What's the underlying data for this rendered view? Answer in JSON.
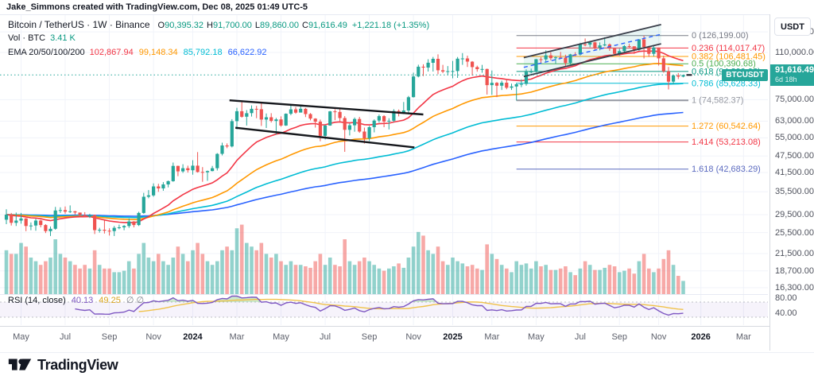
{
  "attribution": "Jake_Simmons created with TradingView.com, Dec 08, 2025 01:49 UTC-5",
  "legend": {
    "title": "Bitcoin / TetherUS · 1W · Binance",
    "ohlc": [
      {
        "k": "O",
        "v": "90,395.32"
      },
      {
        "k": "H",
        "v": "91,700.00"
      },
      {
        "k": "L",
        "v": "89,860.00"
      },
      {
        "k": "C",
        "v": "91,616.49"
      }
    ],
    "change": "+1,221.18 (+1.35%)",
    "value_color": "#089981",
    "vol_label": "Vol · BTC",
    "vol_value": "3.41 K",
    "ema_label": "EMA 20/50/100/200",
    "ema_values": [
      {
        "v": "102,867.94",
        "color": "#f23645"
      },
      {
        "v": "99,148.34",
        "color": "#ff9800"
      },
      {
        "v": "85,792.18",
        "color": "#00bcd4"
      },
      {
        "v": "66,622.92",
        "color": "#2962ff"
      }
    ]
  },
  "price_axis": {
    "currency": "USDT",
    "badge": {
      "symbol": "BTCUSDT",
      "price": "91,616.49",
      "countdown": "6d 18h",
      "color": "#26a69a"
    }
  },
  "rsi_legend": {
    "label": "RSI (14, close)",
    "value": "40.13",
    "ma_value": "49.25",
    "empty": "∅  ∅",
    "value_color": "#7e57c2",
    "ma_color": "#d9a521"
  },
  "footer": {
    "brand": "TradingView"
  },
  "chart_data": {
    "type": "candlestick",
    "symbol": "BTCUSDT",
    "exchange": "Binance",
    "interval": "1W",
    "price_scale": "logarithmic",
    "title": "Bitcoin / TetherUS weekly chart with EMA 20/50/100/200, volume, RSI and Fibonacci retracement",
    "unit": "USDT, candle arrays in thousands",
    "up_color": "#26a69a",
    "down_color": "#ef5350",
    "vol_up_color": "rgba(38,166,154,0.5)",
    "vol_down_color": "rgba(239,83,80,0.5)",
    "first_open_k": 28.3,
    "candles_hlc_k": [
      [
        30.8,
        27.3,
        29.5
      ],
      [
        29.9,
        27.0,
        27.6
      ],
      [
        30.0,
        26.9,
        28.1
      ],
      [
        29.9,
        27.4,
        28.6
      ],
      [
        28.7,
        25.8,
        26.9
      ],
      [
        27.7,
        26.0,
        27.0
      ],
      [
        28.5,
        25.9,
        28.1
      ],
      [
        28.3,
        26.6,
        27.1
      ],
      [
        27.3,
        25.4,
        25.8
      ],
      [
        26.8,
        24.8,
        26.3
      ],
      [
        31.4,
        26.1,
        30.5
      ],
      [
        31.3,
        29.9,
        30.6
      ],
      [
        31.5,
        29.7,
        30.2
      ],
      [
        31.8,
        29.9,
        30.3
      ],
      [
        30.4,
        29.5,
        30.0
      ],
      [
        29.9,
        29.0,
        29.4
      ],
      [
        30.1,
        28.9,
        29.0
      ],
      [
        29.7,
        28.7,
        29.4
      ],
      [
        29.5,
        25.2,
        26.0
      ],
      [
        26.5,
        25.5,
        26.1
      ],
      [
        28.1,
        25.3,
        25.9
      ],
      [
        26.4,
        24.9,
        25.8
      ],
      [
        26.9,
        24.8,
        26.5
      ],
      [
        27.2,
        26.2,
        26.6
      ],
      [
        27.1,
        26.0,
        26.9
      ],
      [
        28.6,
        26.5,
        27.9
      ],
      [
        28.0,
        26.6,
        27.1
      ],
      [
        30.2,
        26.9,
        29.9
      ],
      [
        35.2,
        29.7,
        34.1
      ],
      [
        36.0,
        33.7,
        34.5
      ],
      [
        38.0,
        34.1,
        37.1
      ],
      [
        37.9,
        35.5,
        36.5
      ],
      [
        38.4,
        35.8,
        37.7
      ],
      [
        38.9,
        36.8,
        38.7
      ],
      [
        45.0,
        38.5,
        43.8
      ],
      [
        43.9,
        40.3,
        41.9
      ],
      [
        44.4,
        41.4,
        43.0
      ],
      [
        43.9,
        41.5,
        42.3
      ],
      [
        45.9,
        40.8,
        43.9
      ],
      [
        49.0,
        41.5,
        41.7
      ],
      [
        43.4,
        38.5,
        41.6
      ],
      [
        42.2,
        38.8,
        42.0
      ],
      [
        43.8,
        41.9,
        43.0
      ],
      [
        48.6,
        42.2,
        48.3
      ],
      [
        52.9,
        47.7,
        51.7
      ],
      [
        52.6,
        50.6,
        51.3
      ],
      [
        64.0,
        50.9,
        63.0
      ],
      [
        70.2,
        59.0,
        68.3
      ],
      [
        73.8,
        64.8,
        65.3
      ],
      [
        68.9,
        60.8,
        67.2
      ],
      [
        71.6,
        65.4,
        69.6
      ],
      [
        71.3,
        64.5,
        69.4
      ],
      [
        72.8,
        60.6,
        63.8
      ],
      [
        67.0,
        59.6,
        65.0
      ],
      [
        67.2,
        62.3,
        63.1
      ],
      [
        64.7,
        56.5,
        63.9
      ],
      [
        65.5,
        60.2,
        60.8
      ],
      [
        67.1,
        60.6,
        66.9
      ],
      [
        71.9,
        66.1,
        69.3
      ],
      [
        70.6,
        66.9,
        67.5
      ],
      [
        72.0,
        68.2,
        69.6
      ],
      [
        70.1,
        65.1,
        66.7
      ],
      [
        67.3,
        63.4,
        64.3
      ],
      [
        64.5,
        59.8,
        62.7
      ],
      [
        63.8,
        53.5,
        55.9
      ],
      [
        61.0,
        54.3,
        60.8
      ],
      [
        68.4,
        60.7,
        68.2
      ],
      [
        69.4,
        63.5,
        67.9
      ],
      [
        70.0,
        62.2,
        64.6
      ],
      [
        65.6,
        49.1,
        58.7
      ],
      [
        61.8,
        56.1,
        60.9
      ],
      [
        64.9,
        57.8,
        64.1
      ],
      [
        65.2,
        57.3,
        57.9
      ],
      [
        59.8,
        52.5,
        54.8
      ],
      [
        60.6,
        53.6,
        60.0
      ],
      [
        63.9,
        57.5,
        63.3
      ],
      [
        66.5,
        62.3,
        65.6
      ],
      [
        66.1,
        60.0,
        62.8
      ],
      [
        64.5,
        58.9,
        63.2
      ],
      [
        69.4,
        62.6,
        68.4
      ],
      [
        69.2,
        65.5,
        67.0
      ],
      [
        73.6,
        66.8,
        68.7
      ],
      [
        77.3,
        66.6,
        76.5
      ],
      [
        93.4,
        76.3,
        90.5
      ],
      [
        99.6,
        89.9,
        98.0
      ],
      [
        99.9,
        90.8,
        97.3
      ],
      [
        104.1,
        94.2,
        101.2
      ],
      [
        106.1,
        94.2,
        104.5
      ],
      [
        108.3,
        92.2,
        95.2
      ],
      [
        99.5,
        93.0,
        94.2
      ],
      [
        98.5,
        91.4,
        94.5
      ],
      [
        102.7,
        89.2,
        94.6
      ],
      [
        106.0,
        89.5,
        104.6
      ],
      [
        109.4,
        99.5,
        104.8
      ],
      [
        107.2,
        97.8,
        102.1
      ],
      [
        102.5,
        91.2,
        97.7
      ],
      [
        98.8,
        94.1,
        96.1
      ],
      [
        99.5,
        93.3,
        96.2
      ],
      [
        96.5,
        78.2,
        84.4
      ],
      [
        95.0,
        78.0,
        86.0
      ],
      [
        86.5,
        76.6,
        84.0
      ],
      [
        87.5,
        81.1,
        86.1
      ],
      [
        88.8,
        81.6,
        82.6
      ],
      [
        85.5,
        81.2,
        83.5
      ],
      [
        86.0,
        74.5,
        85.0
      ],
      [
        88.5,
        83.0,
        85.2
      ],
      [
        95.9,
        84.0,
        94.0
      ],
      [
        96.5,
        92.9,
        94.2
      ],
      [
        104.3,
        93.5,
        104.1
      ],
      [
        105.8,
        100.7,
        104.0
      ],
      [
        111.9,
        102.1,
        107.5
      ],
      [
        110.3,
        103.1,
        105.0
      ],
      [
        106.8,
        100.4,
        105.7
      ],
      [
        110.5,
        104.5,
        105.5
      ],
      [
        108.0,
        98.2,
        101.0
      ],
      [
        108.8,
        99.8,
        108.3
      ],
      [
        110.3,
        106.8,
        108.2
      ],
      [
        118.9,
        107.3,
        117.5
      ],
      [
        123.2,
        115.7,
        117.3
      ],
      [
        120.7,
        114.8,
        119.4
      ],
      [
        120.0,
        112.0,
        114.2
      ],
      [
        119.3,
        111.9,
        116.5
      ],
      [
        124.5,
        115.7,
        117.4
      ],
      [
        118.3,
        111.4,
        113.5
      ],
      [
        113.8,
        107.4,
        108.8
      ],
      [
        113.4,
        107.3,
        111.2
      ],
      [
        116.9,
        110.0,
        115.8
      ],
      [
        117.9,
        114.1,
        115.7
      ],
      [
        115.0,
        108.7,
        112.4
      ],
      [
        122.6,
        111.6,
        122.3
      ],
      [
        126.2,
        104.8,
        114.9
      ],
      [
        116.1,
        106.1,
        108.8
      ],
      [
        116.0,
        106.6,
        114.5
      ],
      [
        111.5,
        98.9,
        104.9
      ],
      [
        107.2,
        93.4,
        94.4
      ],
      [
        97.8,
        81.5,
        86.8
      ],
      [
        91.8,
        84.9,
        91.3
      ],
      [
        93.1,
        88.6,
        90.4
      ],
      [
        91.7,
        89.9,
        91.6
      ]
    ],
    "volume_rel": [
      60,
      55,
      55,
      70,
      65,
      50,
      45,
      40,
      45,
      50,
      75,
      55,
      50,
      45,
      40,
      35,
      40,
      35,
      60,
      40,
      35,
      35,
      30,
      30,
      32,
      45,
      35,
      55,
      70,
      50,
      45,
      55,
      45,
      40,
      50,
      65,
      55,
      45,
      60,
      70,
      55,
      45,
      40,
      45,
      60,
      65,
      60,
      90,
      95,
      70,
      65,
      60,
      70,
      55,
      50,
      55,
      45,
      40,
      45,
      40,
      40,
      38,
      36,
      45,
      55,
      40,
      50,
      40,
      38,
      75,
      45,
      40,
      45,
      50,
      45,
      40,
      35,
      32,
      35,
      38,
      42,
      36,
      50,
      65,
      85,
      80,
      60,
      55,
      65,
      45,
      40,
      50,
      45,
      42,
      38,
      40,
      35,
      33,
      68,
      55,
      48,
      40,
      35,
      30,
      45,
      40,
      42,
      35,
      45,
      38,
      40,
      33,
      33,
      35,
      38,
      30,
      26,
      35,
      45,
      40,
      33,
      33,
      36,
      40,
      38,
      30,
      32,
      35,
      28,
      45,
      55,
      35,
      30,
      35,
      48,
      60,
      40,
      25,
      18
    ],
    "overlays": {
      "ema_periods": [
        20,
        50,
        100,
        200
      ],
      "ema_colors": [
        "#f23645",
        "#ff9800",
        "#00bcd4",
        "#2962ff"
      ],
      "ema_current_values": [
        "102,867.94",
        "99,148.34",
        "85,792.18",
        "66,622.92"
      ]
    },
    "current_bar": {
      "open": "90,395.32",
      "high": "91,700.00",
      "low": "89,860.00",
      "close": "91,616.49",
      "change": "+1,221.18 (+1.35%)",
      "volume": "3.41 K",
      "countdown": "6d 18h"
    },
    "price_line": {
      "value": 91616.49,
      "color": "#26a69a"
    },
    "y_ticks": [
      {
        "label": "130,000.00",
        "value": 130000
      },
      {
        "label": "110,000.00",
        "value": 110000
      },
      {
        "label": "75,000.00",
        "value": 75000
      },
      {
        "label": "63,000.00",
        "value": 63000
      },
      {
        "label": "55,000.00",
        "value": 55000
      },
      {
        "label": "47,500.00",
        "value": 47500
      },
      {
        "label": "41,500.00",
        "value": 41500
      },
      {
        "label": "35,500.00",
        "value": 35500
      },
      {
        "label": "29,500.00",
        "value": 29500
      },
      {
        "label": "25,500.00",
        "value": 25500
      },
      {
        "label": "21,500.00",
        "value": 21500
      },
      {
        "label": "18,700.00",
        "value": 18700
      },
      {
        "label": "16,300.00",
        "value": 16300
      }
    ],
    "x_ticks": [
      {
        "label": "May",
        "week": 3
      },
      {
        "label": "Jul",
        "week": 12
      },
      {
        "label": "Sep",
        "week": 21
      },
      {
        "label": "Nov",
        "week": 30
      },
      {
        "label": "2024",
        "week": 38,
        "year": true
      },
      {
        "label": "Mar",
        "week": 47
      },
      {
        "label": "May",
        "week": 56
      },
      {
        "label": "Jul",
        "week": 65
      },
      {
        "label": "Sep",
        "week": 74
      },
      {
        "label": "Nov",
        "week": 83
      },
      {
        "label": "2025",
        "week": 91,
        "year": true
      },
      {
        "label": "Mar",
        "week": 99
      },
      {
        "label": "May",
        "week": 108
      },
      {
        "label": "Jul",
        "week": 117
      },
      {
        "label": "Sep",
        "week": 125
      },
      {
        "label": "Nov",
        "week": 133
      },
      {
        "label": "2026",
        "week": 141.6,
        "year": true
      },
      {
        "label": "Mar",
        "week": 150.3
      }
    ],
    "fib_retracement": {
      "start_week": 104,
      "levels": [
        {
          "ratio": "0",
          "label": "0 (126,199.00)",
          "value": 126199.0,
          "color": "#787b86",
          "width": 1
        },
        {
          "ratio": "0.236",
          "label": "0.236 (114,017.47)",
          "value": 114017.47,
          "color": "#f23645",
          "width": 1
        },
        {
          "ratio": "0.382",
          "label": "0.382 (106,481.45)",
          "value": 106481.45,
          "color": "#ff9800",
          "width": 1
        },
        {
          "ratio": "0.5",
          "label": "0.5 (100,390.68)",
          "value": 100390.68,
          "color": "#4caf50",
          "width": 1
        },
        {
          "ratio": "0.618",
          "label": "0.618 (94,299.92)",
          "value": 94299.92,
          "color": "#089981",
          "width": 1
        },
        {
          "ratio": "0.786",
          "label": "0.786 (85,628.33)",
          "value": 85628.33,
          "color": "#00bcd4",
          "width": 1
        },
        {
          "ratio": "1",
          "label": "1 (74,582.37)",
          "value": 74582.37,
          "color": "#9598a1",
          "width": 2
        },
        {
          "ratio": "1.272",
          "label": "1.272 (60,542.64)",
          "value": 60542.64,
          "color": "#ff9800",
          "width": 1
        },
        {
          "ratio": "1.414",
          "label": "1.414 (53,213.08)",
          "value": 53213.08,
          "color": "#f23645",
          "width": 1
        },
        {
          "ratio": "1.618",
          "label": "1.618 (42,683.29)",
          "value": 42683.29,
          "color": "#5c6bc0",
          "width": 1
        }
      ]
    },
    "trend_channels": {
      "down_channel_2024": {
        "color": "#16181d",
        "width": 2.4,
        "top": [
          [
            45.5,
            74.6
          ],
          [
            85,
            66.5
          ]
        ],
        "bottom": [
          [
            46.7,
            59.7
          ],
          [
            83.2,
            50.9
          ]
        ]
      },
      "up_channel_2025": {
        "color": "#3a3e4a",
        "width": 1.8,
        "upper": [
          [
            105.5,
            105.5
          ],
          [
            133.5,
            138
          ]
        ],
        "lower": [
          [
            105.5,
            90.5
          ],
          [
            133.5,
            118
          ]
        ],
        "mid": {
          "color": "#2962ff",
          "points": [
            [
              105.5,
              97.5
            ],
            [
              133.5,
              127.5
            ]
          ]
        },
        "fill": "rgba(38,166,154,0.10)"
      }
    },
    "rsi": {
      "period": 14,
      "source": "close",
      "current": "40.13",
      "ma_current": "49.25",
      "line_color": "#7e57c2",
      "ma_color": "#f0c24a",
      "band_fill": "rgba(126,87,194,0.07)",
      "over_fill": "rgba(76,175,80,0.28)",
      "upper_band": 70,
      "lower_band": 30,
      "axis_ticks": [
        {
          "label": "80.00",
          "value": 80
        },
        {
          "label": "40.00",
          "value": 40
        }
      ]
    }
  }
}
